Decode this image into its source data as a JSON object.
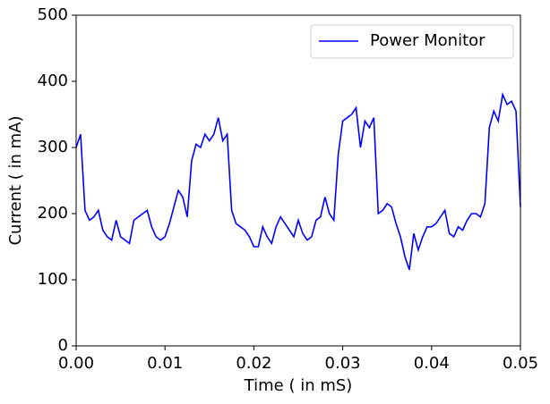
{
  "chart_data": {
    "type": "line",
    "xlabel": "Time ( in mS)",
    "ylabel": "Current ( in mA)",
    "x": [
      0,
      0.0005,
      0.001,
      0.0015,
      0.002,
      0.0025,
      0.003,
      0.0035,
      0.004,
      0.0045,
      0.005,
      0.0055,
      0.006,
      0.0065,
      0.007,
      0.0075,
      0.008,
      0.0085,
      0.009,
      0.0095,
      0.01,
      0.0105,
      0.011,
      0.0115,
      0.012,
      0.0125,
      0.013,
      0.0135,
      0.014,
      0.0145,
      0.015,
      0.0155,
      0.016,
      0.0165,
      0.017,
      0.0175,
      0.018,
      0.0185,
      0.019,
      0.0195,
      0.02,
      0.0205,
      0.021,
      0.0215,
      0.022,
      0.0225,
      0.023,
      0.0235,
      0.024,
      0.0245,
      0.025,
      0.0255,
      0.026,
      0.0265,
      0.027,
      0.0275,
      0.028,
      0.0285,
      0.029,
      0.0295,
      0.03,
      0.0305,
      0.031,
      0.0315,
      0.032,
      0.0325,
      0.033,
      0.0335,
      0.034,
      0.0345,
      0.035,
      0.0355,
      0.036,
      0.0365,
      0.037,
      0.0375,
      0.038,
      0.0385,
      0.039,
      0.0395,
      0.04,
      0.0405,
      0.041,
      0.0415,
      0.042,
      0.0425,
      0.043,
      0.0435,
      0.044,
      0.0445,
      0.045,
      0.0455,
      0.046,
      0.0465,
      0.047,
      0.0475,
      0.048,
      0.0485,
      0.049,
      0.0495,
      0.05
    ],
    "series": [
      {
        "name": "Power Monitor",
        "color": "#0000ff",
        "values": [
          300,
          320,
          205,
          190,
          195,
          205,
          175,
          165,
          160,
          190,
          165,
          160,
          155,
          190,
          195,
          200,
          205,
          180,
          165,
          160,
          165,
          185,
          210,
          235,
          225,
          195,
          280,
          305,
          300,
          320,
          310,
          320,
          345,
          310,
          320,
          205,
          185,
          180,
          175,
          165,
          150,
          150,
          180,
          165,
          155,
          180,
          195,
          185,
          175,
          165,
          190,
          170,
          160,
          165,
          190,
          195,
          225,
          200,
          190,
          290,
          340,
          345,
          350,
          360,
          300,
          340,
          330,
          345,
          200,
          205,
          215,
          210,
          185,
          165,
          135,
          115,
          170,
          145,
          165,
          180,
          180,
          185,
          195,
          205,
          170,
          165,
          180,
          175,
          190,
          200,
          200,
          195,
          215,
          330,
          355,
          340,
          380,
          365,
          370,
          355,
          210
        ]
      }
    ],
    "xlim": [
      0,
      0.05
    ],
    "xticks": [
      {
        "value": 0,
        "label": "0.00"
      },
      {
        "value": 0.01,
        "label": "0.01"
      },
      {
        "value": 0.02,
        "label": "0.02"
      },
      {
        "value": 0.03,
        "label": "0.03"
      },
      {
        "value": 0.04,
        "label": "0.04"
      },
      {
        "value": 0.05,
        "label": "0.05"
      }
    ],
    "ylim": [
      0,
      500
    ],
    "yticks": [
      0,
      100,
      200,
      300,
      400,
      500
    ],
    "grid": false,
    "legend": "upper right"
  }
}
